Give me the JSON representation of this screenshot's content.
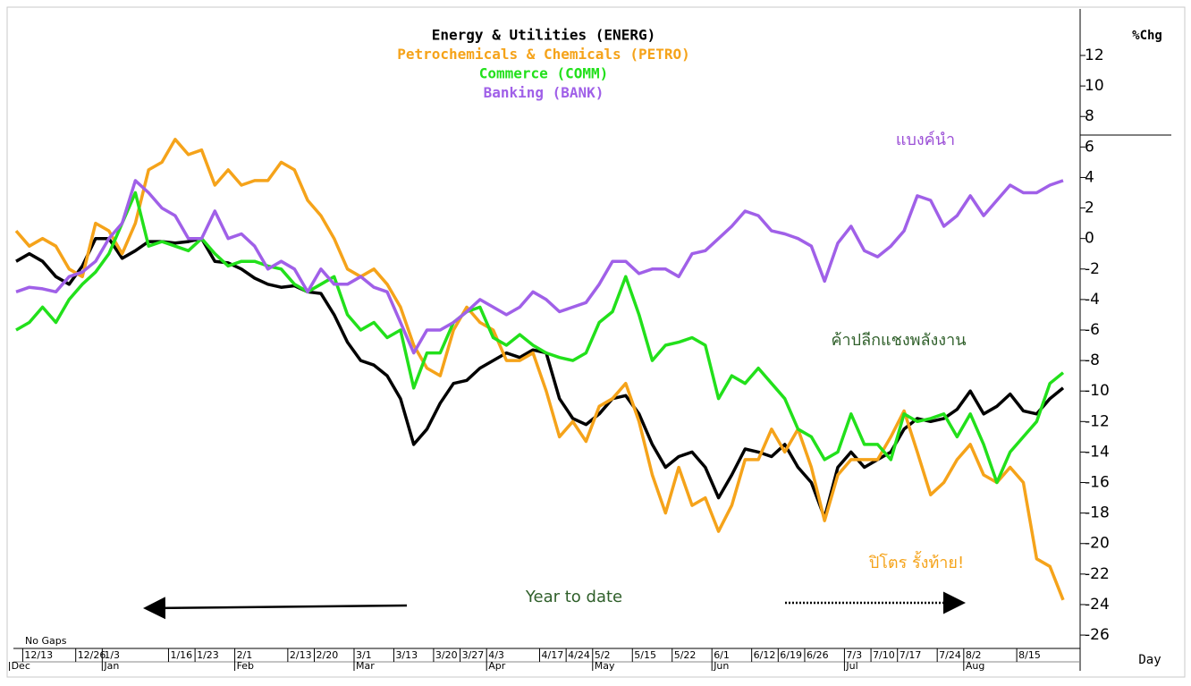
{
  "chart_data": {
    "type": "line",
    "title_lines_are_series": true,
    "y_axis_label": "%Chg",
    "x_axis_label": "Day",
    "gap_note": "No Gaps",
    "ylim": [
      -26.7,
      15.05
    ],
    "yticks": [
      -26,
      -24,
      -22,
      -20,
      -18,
      -16,
      -14,
      -12,
      -10,
      -8,
      -6,
      -4,
      -2,
      0,
      2,
      4,
      6,
      8,
      10,
      12
    ],
    "categories": [
      null,
      "12/13",
      null,
      null,
      null,
      "12/26",
      null,
      "1/3",
      null,
      null,
      null,
      null,
      "1/16",
      null,
      "1/23",
      null,
      null,
      "2/1",
      null,
      null,
      null,
      "2/13",
      null,
      "2/20",
      null,
      null,
      "3/1",
      null,
      null,
      "3/13",
      null,
      null,
      "3/20",
      null,
      "3/27",
      null,
      "4/3",
      null,
      null,
      null,
      "4/17",
      null,
      "4/24",
      null,
      "5/2",
      null,
      null,
      "5/15",
      null,
      null,
      "5/22",
      null,
      null,
      "6/1",
      null,
      null,
      "6/12",
      null,
      "6/19",
      null,
      "6/26",
      null,
      null,
      "7/3",
      null,
      "7/10",
      null,
      "7/17",
      null,
      null,
      "7/24",
      null,
      "8/2",
      null,
      null,
      null,
      "8/15",
      null,
      null,
      null
    ],
    "month_ticks": [
      {
        "value": 0,
        "label": "Dec"
      },
      {
        "value": 7,
        "label": "Jan"
      },
      {
        "value": 17,
        "label": "Feb"
      },
      {
        "value": 26,
        "label": "Mar"
      },
      {
        "value": 36,
        "label": "Apr"
      },
      {
        "value": 44,
        "label": "May"
      },
      {
        "value": 53,
        "label": "Jun"
      },
      {
        "value": 63,
        "label": "Jul"
      },
      {
        "value": 72,
        "label": "Aug"
      }
    ],
    "series": [
      {
        "name": "Energy & Utilities (ENERG)",
        "color": "#000000",
        "values": [
          -1.5,
          -1.0,
          -1.5,
          -2.5,
          -3.0,
          -1.8,
          0.0,
          0.0,
          -1.3,
          -0.8,
          -0.2,
          -0.2,
          -0.3,
          -0.2,
          0.0,
          -1.5,
          -1.6,
          -2.0,
          -2.6,
          -3.0,
          -3.2,
          -3.1,
          -3.5,
          -3.6,
          -5.0,
          -6.8,
          -8.0,
          -8.3,
          -9.0,
          -10.5,
          -13.5,
          -12.5,
          -10.8,
          -9.5,
          -9.3,
          -8.5,
          -8.0,
          -7.5,
          -7.8,
          -7.3,
          -7.5,
          -10.5,
          -11.8,
          -12.2,
          -11.5,
          -10.5,
          -10.3,
          -11.5,
          -13.5,
          -15.0,
          -14.3,
          -14.0,
          -15.0,
          -17.0,
          -15.5,
          -13.8,
          -14.0,
          -14.3,
          -13.5,
          -15.0,
          -16.0,
          -18.3,
          -15.0,
          -14.0,
          -15.0,
          -14.5,
          -14.0,
          -12.5,
          -11.8,
          -12.0,
          -11.8,
          -11.2,
          -10.0,
          -11.5,
          -11.0,
          -10.2,
          -11.3,
          -11.5,
          -10.5,
          -9.8
        ]
      },
      {
        "name": "Petrochemicals & Chemicals (PETRO)",
        "color": "#f5a31a",
        "values": [
          0.5,
          -0.5,
          0.0,
          -0.5,
          -2.0,
          -2.5,
          1.0,
          0.5,
          -1.0,
          1.0,
          4.5,
          5.0,
          6.5,
          5.5,
          5.8,
          3.5,
          4.5,
          3.5,
          3.8,
          3.8,
          5.0,
          4.5,
          2.5,
          1.5,
          0.0,
          -2.0,
          -2.5,
          -2.0,
          -3.0,
          -4.5,
          -7.0,
          -8.5,
          -9.0,
          -6.0,
          -4.5,
          -5.5,
          -6.0,
          -8.0,
          -8.0,
          -7.5,
          -10.0,
          -13.0,
          -12.0,
          -13.3,
          -11.0,
          -10.5,
          -9.5,
          -12.0,
          -15.5,
          -18.0,
          -15.0,
          -17.5,
          -17.0,
          -19.2,
          -17.5,
          -14.5,
          -14.5,
          -12.5,
          -14.0,
          -12.5,
          -15.0,
          -18.5,
          -15.5,
          -14.5,
          -14.5,
          -14.5,
          -13.0,
          -11.3,
          -14.0,
          -16.8,
          -16.0,
          -14.5,
          -13.5,
          -15.5,
          -16.0,
          -15.0,
          -16.0,
          -21.0,
          -21.5,
          -23.7
        ]
      },
      {
        "name": "Commerce (COMM)",
        "color": "#22e01b",
        "values": [
          -6.0,
          -5.5,
          -4.5,
          -5.5,
          -4.0,
          -3.0,
          -2.2,
          -1.0,
          1.0,
          3.0,
          -0.5,
          -0.2,
          -0.5,
          -0.8,
          0.0,
          -1.0,
          -1.8,
          -1.5,
          -1.5,
          -1.8,
          -2.0,
          -3.0,
          -3.5,
          -3.0,
          -2.5,
          -5.0,
          -6.0,
          -5.5,
          -6.5,
          -6.0,
          -9.8,
          -7.5,
          -7.5,
          -5.5,
          -4.8,
          -4.5,
          -6.5,
          -7.0,
          -6.3,
          -7.0,
          -7.5,
          -7.8,
          -8.0,
          -7.5,
          -5.5,
          -4.8,
          -2.5,
          -5.0,
          -8.0,
          -7.0,
          -6.8,
          -6.5,
          -7.0,
          -10.5,
          -9.0,
          -9.5,
          -8.5,
          -9.5,
          -10.5,
          -12.5,
          -13.0,
          -14.5,
          -14.0,
          -11.5,
          -13.5,
          -13.5,
          -14.5,
          -11.5,
          -12.0,
          -11.8,
          -11.5,
          -13.0,
          -11.5,
          -13.5,
          -16.0,
          -14.0,
          -13.0,
          -12.0,
          -9.5,
          -8.8
        ]
      },
      {
        "name": "Banking (BANK)",
        "color": "#a060e8",
        "values": [
          -3.5,
          -3.2,
          -3.3,
          -3.5,
          -2.5,
          -2.2,
          -1.5,
          0.0,
          1.0,
          3.8,
          3.0,
          2.0,
          1.5,
          0.0,
          0.0,
          1.8,
          0.0,
          0.3,
          -0.5,
          -2.0,
          -1.5,
          -2.0,
          -3.5,
          -2.0,
          -3.0,
          -3.0,
          -2.5,
          -3.2,
          -3.5,
          -5.5,
          -7.5,
          -6.0,
          -6.0,
          -5.5,
          -4.8,
          -4.0,
          -4.5,
          -5.0,
          -4.5,
          -3.5,
          -4.0,
          -4.8,
          -4.5,
          -4.2,
          -3.0,
          -1.5,
          -1.5,
          -2.3,
          -2.0,
          -2.0,
          -2.5,
          -1.0,
          -0.8,
          0.0,
          0.8,
          1.8,
          1.5,
          0.5,
          0.3,
          0.0,
          -0.5,
          -2.8,
          -0.3,
          0.8,
          -0.8,
          -1.2,
          -0.5,
          0.5,
          2.8,
          2.5,
          0.8,
          1.5,
          2.8,
          1.5,
          2.5,
          3.5,
          3.0,
          3.0,
          3.5,
          3.8
        ]
      }
    ],
    "annotations": [
      {
        "text": "แบงค์นำ",
        "color": "#9b4fd6"
      },
      {
        "text": "ค้าปลีกแชงพลังงาน",
        "color": "#2f5f2a"
      },
      {
        "text": "ปิโตร รั้งท้าย!",
        "color": "#f5a31a"
      },
      {
        "text": "Year to date",
        "color": "#2f5f2a"
      }
    ]
  }
}
